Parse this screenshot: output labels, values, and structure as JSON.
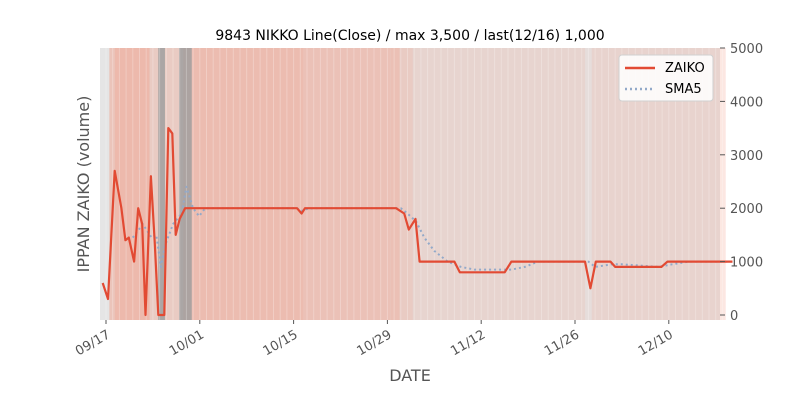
{
  "chart_data": {
    "type": "line",
    "title": "9843 NIKKO Line(Close) / max 3,500 / last(12/16) 1,000",
    "xlabel": "DATE",
    "ylabel": "IPPAN ZAIKO (volume)",
    "ylim": [
      0,
      5000
    ],
    "y_ticks": [
      "0",
      "1000",
      "2000",
      "3000",
      "4000",
      "5000"
    ],
    "y_axis_side": "right",
    "x_ticks": [
      "09/17",
      "10/01",
      "10/15",
      "10/29",
      "11/12",
      "11/26",
      "12/10"
    ],
    "x_tick_days": [
      0,
      14,
      28,
      42,
      56,
      70,
      84
    ],
    "legend_position": "top-right",
    "grid": false,
    "colors": {
      "zaiko": "#e24a33",
      "sma": "#92a9c9",
      "shade": "#f29b85",
      "gray": "#a0a0a0",
      "plot_bg": "#e5e5e5"
    },
    "series": [
      {
        "name": "ZAIKO",
        "style": "solid",
        "points": [
          [
            -0.5,
            600
          ],
          [
            0.3,
            300
          ],
          [
            1.3,
            2700
          ],
          [
            2.3,
            2000
          ],
          [
            2.9,
            1400
          ],
          [
            3.4,
            1450
          ],
          [
            4.2,
            1000
          ],
          [
            4.8,
            2000
          ],
          [
            5.4,
            1700
          ],
          [
            5.9,
            0
          ],
          [
            6.7,
            2600
          ],
          [
            7.3,
            1300
          ],
          [
            7.8,
            0
          ],
          [
            8.7,
            0
          ],
          [
            9.3,
            3500
          ],
          [
            9.9,
            3400
          ],
          [
            10.4,
            1500
          ],
          [
            11.0,
            1800
          ],
          [
            11.8,
            2000
          ],
          [
            12.5,
            2000
          ],
          [
            13.5,
            2000
          ],
          [
            28.5,
            2000
          ],
          [
            29.2,
            1900
          ],
          [
            29.7,
            2000
          ],
          [
            43.3,
            2000
          ],
          [
            44.5,
            1900
          ],
          [
            45.2,
            1600
          ],
          [
            46.2,
            1800
          ],
          [
            46.8,
            1000
          ],
          [
            52.0,
            1000
          ],
          [
            52.8,
            800
          ],
          [
            59.5,
            800
          ],
          [
            60.5,
            1000
          ],
          [
            71.5,
            1000
          ],
          [
            72.3,
            500
          ],
          [
            73.1,
            1000
          ],
          [
            75.3,
            1000
          ],
          [
            76.0,
            900
          ],
          [
            82.9,
            900
          ],
          [
            83.8,
            1000
          ],
          [
            93.5,
            1000
          ]
        ]
      },
      {
        "name": "SMA5",
        "style": "dotted",
        "points": [
          [
            4.0,
            1450
          ],
          [
            5.5,
            1700
          ],
          [
            6.8,
            1450
          ],
          [
            7.5,
            1500
          ],
          [
            8.2,
            900
          ],
          [
            8.8,
            1300
          ],
          [
            10.0,
            1700
          ],
          [
            11.3,
            1900
          ],
          [
            12.0,
            2400
          ],
          [
            13.0,
            2000
          ],
          [
            13.9,
            1850
          ],
          [
            14.8,
            2000
          ],
          [
            28.5,
            2000
          ],
          [
            29.2,
            1950
          ],
          [
            29.7,
            1980
          ],
          [
            31.0,
            2000
          ],
          [
            44.0,
            2000
          ],
          [
            45.0,
            1900
          ],
          [
            46.3,
            1750
          ],
          [
            47.5,
            1450
          ],
          [
            49.0,
            1200
          ],
          [
            51.0,
            1000
          ],
          [
            53.0,
            900
          ],
          [
            55.0,
            850
          ],
          [
            58.0,
            850
          ],
          [
            60.5,
            850
          ],
          [
            62.5,
            900
          ],
          [
            64.5,
            1000
          ],
          [
            72.0,
            1000
          ],
          [
            73.0,
            900
          ],
          [
            75.5,
            950
          ],
          [
            77.0,
            950
          ],
          [
            82.5,
            900
          ],
          [
            84.5,
            950
          ],
          [
            87.0,
            1000
          ],
          [
            93.5,
            1000
          ]
        ]
      }
    ]
  }
}
